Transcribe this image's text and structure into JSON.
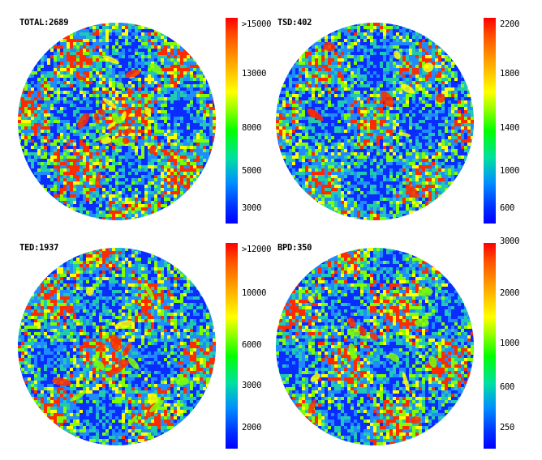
{
  "panels": [
    {
      "id": "total",
      "title": "TOTAL:2689",
      "ticks": [
        ">15000",
        "13000",
        "8000",
        "5000",
        "3000"
      ],
      "level": 0.35,
      "hotspot_density": 0.6
    },
    {
      "id": "tsd",
      "title": "TSD:402",
      "ticks": [
        "2200",
        "1800",
        "1400",
        "1000",
        "600"
      ],
      "level": 0.2,
      "hotspot_density": 0.25
    },
    {
      "id": "ted",
      "title": "TED:1937",
      "ticks": [
        ">12000",
        "10000",
        "6000",
        "3000",
        "2000"
      ],
      "level": 0.3,
      "hotspot_density": 0.55
    },
    {
      "id": "bpd",
      "title": "BPD:350",
      "ticks": [
        "3000",
        "2000",
        "1000",
        "600",
        "250"
      ],
      "level": 0.3,
      "hotspot_density": 0.35
    }
  ],
  "colors": {
    "low": "#0a2cff",
    "mid_low": "#1f8bff",
    "mid": "#21c9b0",
    "mid_high": "#7fff00",
    "high": "#ffff00",
    "hot": "#ff2a00"
  }
}
